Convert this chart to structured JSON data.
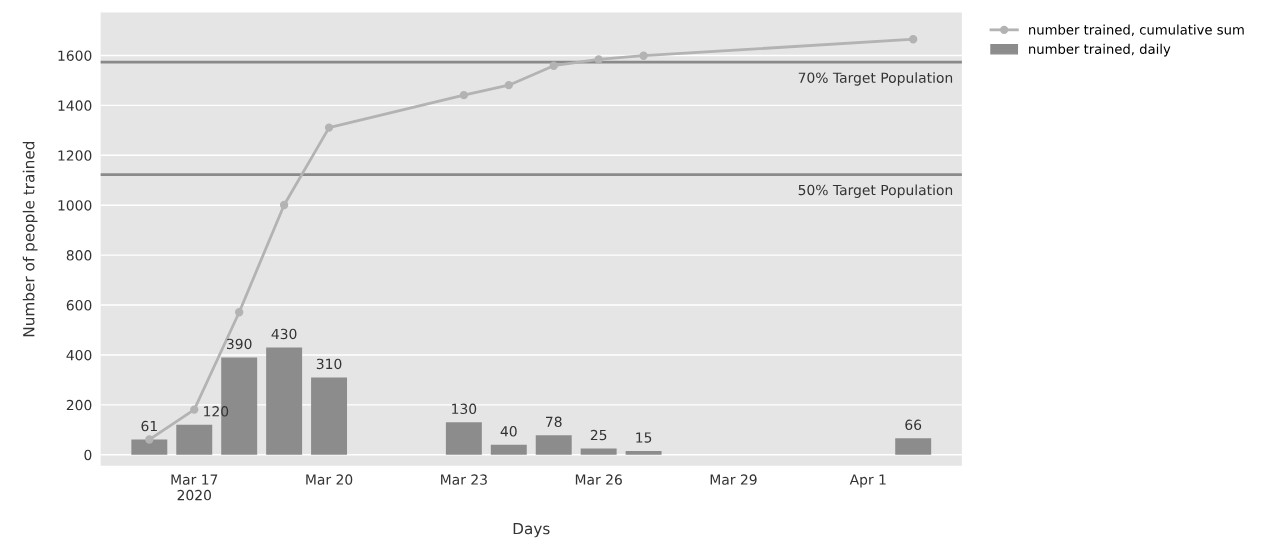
{
  "chart_data": {
    "type": "bar",
    "xlabel": "Days",
    "ylabel": "Number of people trained",
    "x": [
      "2020-03-16",
      "2020-03-17",
      "2020-03-18",
      "2020-03-19",
      "2020-03-20",
      "2020-03-23",
      "2020-03-24",
      "2020-03-25",
      "2020-03-26",
      "2020-03-27",
      "2020-04-02"
    ],
    "series": [
      {
        "name": "number trained, cumulative sum",
        "type": "line",
        "color": "#b3b3b3",
        "marker": "circle",
        "line_style": "solid",
        "values": [
          61,
          181,
          571,
          1001,
          1311,
          1441,
          1481,
          1559,
          1584,
          1599,
          1665
        ]
      },
      {
        "name": "number trained, daily",
        "color": "#8c8c8c",
        "data_labels": true,
        "values": [
          61,
          120,
          390,
          430,
          310,
          130,
          40,
          78,
          25,
          15,
          66
        ]
      }
    ],
    "xlim": [
      "2020-03-14T22:00",
      "2020-04-03T02:00"
    ],
    "xticks": [
      {
        "value": "2020-03-17",
        "label": "Mar 17\n2020"
      },
      {
        "value": "2020-03-20",
        "label": "Mar 20"
      },
      {
        "value": "2020-03-23",
        "label": "Mar 23"
      },
      {
        "value": "2020-03-26",
        "label": "Mar 26"
      },
      {
        "value": "2020-03-29",
        "label": "Mar 29"
      },
      {
        "value": "2020-04-01",
        "label": "Apr 1"
      }
    ],
    "ylim": [
      -44,
      1772
    ],
    "yticks": [
      0,
      200,
      400,
      600,
      800,
      1000,
      1200,
      1400,
      1600
    ],
    "ref_lines": [
      {
        "axis": "y",
        "value": 1573,
        "label": "70% Target Population",
        "color": "#8a8a8a"
      },
      {
        "axis": "y",
        "value": 1123,
        "label": "50% Target Population",
        "color": "#8a8a8a"
      }
    ],
    "grid": "y",
    "legend": "top right"
  }
}
